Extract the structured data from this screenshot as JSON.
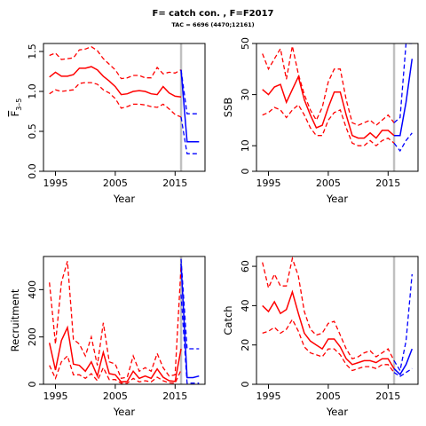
{
  "title": "F= catch con. , F=F2017",
  "subtitle": "TAC = 6696 (4470;12161)",
  "colors": {
    "history": "#ff0000",
    "forecast": "#0000ff",
    "marker": "#c0c0c0",
    "axis": "#000000"
  },
  "chart_data": [
    {
      "type": "line",
      "ylabel_main": "F",
      "ylabel_sub": "3–5",
      "xlabel": "Year",
      "xlim": [
        1993,
        2020
      ],
      "ylim": [
        0,
        1.6
      ],
      "xticks": [
        1995,
        2005,
        2015
      ],
      "yticks": [
        0.0,
        0.5,
        1.0,
        1.5
      ],
      "ytick_labels": [
        "0.0",
        "0.5",
        "1.0",
        "1.5"
      ],
      "marker_year": 2016,
      "history": {
        "x": [
          1994,
          1995,
          1996,
          1997,
          1998,
          1999,
          2000,
          2001,
          2002,
          2003,
          2004,
          2005,
          2006,
          2007,
          2008,
          2009,
          2010,
          2011,
          2012,
          2013,
          2014,
          2015,
          2016
        ],
        "estimate": [
          1.18,
          1.24,
          1.19,
          1.19,
          1.21,
          1.29,
          1.29,
          1.31,
          1.27,
          1.19,
          1.13,
          1.06,
          0.96,
          0.97,
          1.0,
          1.01,
          1.0,
          0.97,
          0.96,
          1.06,
          0.98,
          0.94,
          0.93
        ],
        "upper": [
          1.45,
          1.48,
          1.4,
          1.41,
          1.42,
          1.52,
          1.53,
          1.56,
          1.51,
          1.41,
          1.34,
          1.27,
          1.16,
          1.17,
          1.2,
          1.2,
          1.17,
          1.17,
          1.3,
          1.22,
          1.24,
          1.23,
          1.27
        ],
        "lower": [
          0.97,
          1.02,
          1.0,
          1.01,
          1.02,
          1.1,
          1.11,
          1.11,
          1.09,
          1.02,
          0.98,
          0.91,
          0.79,
          0.81,
          0.84,
          0.84,
          0.83,
          0.81,
          0.8,
          0.84,
          0.78,
          0.71,
          0.68
        ]
      },
      "forecast": {
        "x": [
          2016,
          2017,
          2018,
          2019
        ],
        "estimate": [
          1.27,
          0.37,
          0.37,
          0.37
        ],
        "upper": [
          1.27,
          0.72,
          0.72,
          0.72
        ],
        "lower": [
          0.68,
          0.22,
          0.22,
          0.22
        ]
      }
    },
    {
      "type": "line",
      "ylabel_main": "SSB",
      "ylabel_sub": "",
      "xlabel": "Year",
      "xlim": [
        1993,
        2020
      ],
      "ylim": [
        0,
        50
      ],
      "xticks": [
        1995,
        2005,
        2015
      ],
      "yticks": [
        0,
        10,
        30,
        50
      ],
      "ytick_labels": [
        "0",
        "10",
        "30",
        "50"
      ],
      "marker_year": 2016,
      "history": {
        "x": [
          1994,
          1995,
          1996,
          1997,
          1998,
          1999,
          2000,
          2001,
          2002,
          2003,
          2004,
          2005,
          2006,
          2007,
          2008,
          2009,
          2010,
          2011,
          2012,
          2013,
          2014,
          2015,
          2016
        ],
        "estimate": [
          32,
          30,
          33,
          34,
          27,
          32,
          37,
          28,
          22,
          17,
          18,
          25,
          31,
          31,
          22,
          14,
          13,
          13,
          15,
          13,
          16,
          16,
          14
        ],
        "upper": [
          46,
          40,
          44,
          48,
          36,
          49,
          38,
          30,
          24,
          20,
          25,
          35,
          40,
          40,
          28,
          19,
          18,
          19,
          20,
          18,
          20,
          22,
          19
        ],
        "lower": [
          22,
          23,
          25,
          24,
          21,
          24,
          26,
          22,
          17,
          14,
          14,
          20,
          23,
          24,
          17,
          11,
          10,
          10,
          12,
          10,
          12,
          13,
          11
        ]
      },
      "forecast": {
        "x": [
          2016,
          2017,
          2018,
          2019
        ],
        "estimate": [
          14,
          14,
          27,
          44
        ],
        "upper": [
          19,
          21,
          54,
          54
        ],
        "lower": [
          11,
          8,
          12,
          15
        ]
      }
    },
    {
      "type": "line",
      "ylabel_main": "Recruitment",
      "ylabel_sub": "",
      "xlabel": "Year",
      "xlim": [
        1993,
        2020
      ],
      "ylim": [
        0,
        540
      ],
      "xticks": [
        1995,
        2005,
        2015
      ],
      "yticks": [
        0,
        200,
        400
      ],
      "ytick_labels": [
        "0",
        "200",
        "400"
      ],
      "marker_year": 2016,
      "history": {
        "x": [
          1994,
          1995,
          1996,
          1997,
          1998,
          1999,
          2000,
          2001,
          2002,
          2003,
          2004,
          2005,
          2006,
          2007,
          2008,
          2009,
          2010,
          2011,
          2012,
          2013,
          2014,
          2015,
          2016
        ],
        "estimate": [
          175,
          60,
          185,
          240,
          85,
          80,
          55,
          95,
          35,
          135,
          45,
          40,
          10,
          12,
          55,
          25,
          35,
          25,
          65,
          30,
          15,
          12,
          150
        ],
        "upper": [
          430,
          170,
          430,
          520,
          190,
          170,
          120,
          200,
          80,
          260,
          95,
          85,
          25,
          30,
          120,
          55,
          70,
          55,
          130,
          70,
          35,
          40,
          500
        ],
        "lower": [
          80,
          25,
          95,
          120,
          40,
          40,
          25,
          45,
          15,
          70,
          20,
          20,
          4,
          5,
          25,
          10,
          15,
          10,
          30,
          15,
          6,
          5,
          60
        ]
      },
      "forecast": {
        "x": [
          2016,
          2017,
          2018,
          2019
        ],
        "estimate": [
          510,
          28,
          28,
          35
        ],
        "upper": [
          530,
          150,
          150,
          150
        ],
        "lower": [
          380,
          5,
          5,
          5
        ]
      }
    },
    {
      "type": "line",
      "ylabel_main": "Catch",
      "ylabel_sub": "",
      "xlabel": "Year",
      "xlim": [
        1993,
        2020
      ],
      "ylim": [
        0,
        65
      ],
      "xticks": [
        1995,
        2005,
        2015
      ],
      "yticks": [
        0,
        20,
        40,
        60
      ],
      "ytick_labels": [
        "0",
        "20",
        "40",
        "60"
      ],
      "marker_year": 2016,
      "history": {
        "x": [
          1994,
          1995,
          1996,
          1997,
          1998,
          1999,
          2000,
          2001,
          2002,
          2003,
          2004,
          2005,
          2006,
          2007,
          2008,
          2009,
          2010,
          2011,
          2012,
          2013,
          2014,
          2015,
          2016
        ],
        "estimate": [
          40,
          37,
          42,
          36,
          38,
          47,
          36,
          26,
          22,
          20,
          18,
          23,
          23,
          19,
          13,
          10,
          11,
          12,
          12,
          11,
          13,
          13,
          8
        ],
        "upper": [
          62,
          49,
          56,
          50,
          50,
          64,
          55,
          37,
          28,
          25,
          26,
          31,
          32,
          25,
          18,
          13,
          14,
          16,
          17,
          14,
          16,
          18,
          12
        ],
        "lower": [
          26,
          27,
          29,
          26,
          28,
          33,
          27,
          19,
          16,
          15,
          14,
          18,
          18,
          15,
          10,
          7,
          8,
          9,
          9,
          8,
          10,
          10,
          6
        ]
      },
      "forecast": {
        "x": [
          2016,
          2017,
          2018,
          2019
        ],
        "estimate": [
          8,
          5,
          10,
          18
        ],
        "upper": [
          12,
          7,
          22,
          56
        ],
        "lower": [
          6,
          4,
          6,
          8
        ]
      }
    }
  ]
}
